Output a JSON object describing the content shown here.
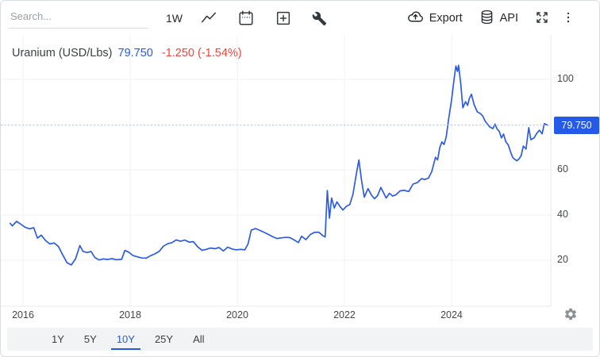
{
  "toolbar": {
    "search_placeholder": "Search...",
    "interval_label": "1W",
    "export_label": "Export",
    "api_label": "API"
  },
  "legend": {
    "title": "Uranium (USD/Lbs)",
    "price": "79.750",
    "change": "-1.250 (-1.54%)"
  },
  "price_badge": {
    "value": "79.750"
  },
  "range_selector": {
    "items": [
      "1Y",
      "5Y",
      "10Y",
      "25Y",
      "All"
    ],
    "active": "10Y"
  },
  "colors": {
    "accent_blue": "#2559e8",
    "line_blue": "#2c5be8",
    "negative_red": "#f0453c",
    "badge_text": "#ffffff",
    "grid": "#eef1f5",
    "axis_border": "#e4e8ec",
    "dashed_price_line": "#a3b7f2",
    "axis_text": "#43474d",
    "range_bar_bg": "#f1f3f4"
  },
  "chart_data": {
    "type": "line",
    "title": "Uranium (USD/Lbs)",
    "unit": "USD/Lbs",
    "current_price": 79.75,
    "xlim": [
      2015.585,
      2025.852
    ],
    "ylim": [
      -0.35,
      119.65
    ],
    "x_ticks": [
      {
        "t": 2016,
        "label": "2016"
      },
      {
        "t": 2018,
        "label": "2018"
      },
      {
        "t": 2020,
        "label": "2020"
      },
      {
        "t": 2022,
        "label": "2022"
      },
      {
        "t": 2024,
        "label": "2024"
      }
    ],
    "y_ticks": [
      {
        "v": 100,
        "label": "100"
      },
      {
        "v": 60,
        "label": "60"
      },
      {
        "v": 40,
        "label": "40"
      },
      {
        "v": 20,
        "label": "20"
      }
    ],
    "series": [
      {
        "name": "Uranium",
        "color": "#2c5be8",
        "points": [
          [
            2015.76,
            36.3
          ],
          [
            2015.8,
            35.2
          ],
          [
            2015.88,
            37.2
          ],
          [
            2015.96,
            35.9
          ],
          [
            2016.04,
            34.6
          ],
          [
            2016.12,
            33.9
          ],
          [
            2016.2,
            34.4
          ],
          [
            2016.27,
            29.8
          ],
          [
            2016.34,
            31.1
          ],
          [
            2016.42,
            28.7
          ],
          [
            2016.5,
            27.2
          ],
          [
            2016.58,
            27.6
          ],
          [
            2016.66,
            26.1
          ],
          [
            2016.74,
            22.4
          ],
          [
            2016.82,
            18.9
          ],
          [
            2016.9,
            17.9
          ],
          [
            2016.98,
            20.6
          ],
          [
            2017.06,
            26.5
          ],
          [
            2017.12,
            23.9
          ],
          [
            2017.2,
            23.4
          ],
          [
            2017.27,
            23.9
          ],
          [
            2017.34,
            21.2
          ],
          [
            2017.42,
            20.1
          ],
          [
            2017.5,
            20.6
          ],
          [
            2017.58,
            20.3
          ],
          [
            2017.66,
            20.7
          ],
          [
            2017.74,
            20.2
          ],
          [
            2017.84,
            20.4
          ],
          [
            2017.9,
            24.3
          ],
          [
            2017.97,
            23.6
          ],
          [
            2018.05,
            22.1
          ],
          [
            2018.13,
            21.5
          ],
          [
            2018.22,
            21.0
          ],
          [
            2018.3,
            20.9
          ],
          [
            2018.38,
            22.0
          ],
          [
            2018.46,
            22.8
          ],
          [
            2018.54,
            23.9
          ],
          [
            2018.62,
            26.2
          ],
          [
            2018.7,
            27.3
          ],
          [
            2018.78,
            27.8
          ],
          [
            2018.86,
            29.0
          ],
          [
            2018.94,
            28.4
          ],
          [
            2019.02,
            28.9
          ],
          [
            2019.1,
            28.0
          ],
          [
            2019.18,
            28.2
          ],
          [
            2019.26,
            25.9
          ],
          [
            2019.34,
            24.4
          ],
          [
            2019.42,
            24.8
          ],
          [
            2019.5,
            25.4
          ],
          [
            2019.58,
            25.1
          ],
          [
            2019.66,
            25.6
          ],
          [
            2019.74,
            24.1
          ],
          [
            2019.82,
            25.8
          ],
          [
            2019.9,
            25.0
          ],
          [
            2019.98,
            24.6
          ],
          [
            2020.06,
            24.8
          ],
          [
            2020.14,
            24.6
          ],
          [
            2020.2,
            27.2
          ],
          [
            2020.26,
            33.3
          ],
          [
            2020.34,
            34.0
          ],
          [
            2020.42,
            33.2
          ],
          [
            2020.5,
            32.3
          ],
          [
            2020.58,
            31.4
          ],
          [
            2020.66,
            30.4
          ],
          [
            2020.74,
            29.6
          ],
          [
            2020.82,
            29.9
          ],
          [
            2020.9,
            30.1
          ],
          [
            2020.98,
            30.0
          ],
          [
            2021.06,
            29.0
          ],
          [
            2021.14,
            27.8
          ],
          [
            2021.2,
            30.6
          ],
          [
            2021.28,
            29.1
          ],
          [
            2021.36,
            31.3
          ],
          [
            2021.44,
            32.3
          ],
          [
            2021.52,
            32.4
          ],
          [
            2021.6,
            30.8
          ],
          [
            2021.64,
            30.3
          ],
          [
            2021.68,
            50.8
          ],
          [
            2021.72,
            38.6
          ],
          [
            2021.76,
            47.5
          ],
          [
            2021.81,
            43.1
          ],
          [
            2021.86,
            45.8
          ],
          [
            2021.91,
            44.0
          ],
          [
            2021.97,
            42.2
          ],
          [
            2022.04,
            43.9
          ],
          [
            2022.1,
            44.6
          ],
          [
            2022.16,
            49.3
          ],
          [
            2022.22,
            57.8
          ],
          [
            2022.27,
            64.3
          ],
          [
            2022.32,
            55.2
          ],
          [
            2022.37,
            47.9
          ],
          [
            2022.44,
            51.7
          ],
          [
            2022.5,
            49.0
          ],
          [
            2022.56,
            47.2
          ],
          [
            2022.62,
            48.6
          ],
          [
            2022.68,
            52.2
          ],
          [
            2022.73,
            49.8
          ],
          [
            2022.78,
            47.5
          ],
          [
            2022.84,
            49.6
          ],
          [
            2022.9,
            48.4
          ],
          [
            2022.96,
            48.9
          ],
          [
            2023.04,
            50.7
          ],
          [
            2023.12,
            50.9
          ],
          [
            2023.2,
            50.4
          ],
          [
            2023.28,
            53.7
          ],
          [
            2023.36,
            54.3
          ],
          [
            2023.44,
            56.1
          ],
          [
            2023.5,
            55.7
          ],
          [
            2023.57,
            56.4
          ],
          [
            2023.63,
            59.2
          ],
          [
            2023.7,
            65.5
          ],
          [
            2023.74,
            64.4
          ],
          [
            2023.78,
            69.8
          ],
          [
            2023.82,
            72.3
          ],
          [
            2023.86,
            71.2
          ],
          [
            2023.9,
            74.5
          ],
          [
            2023.95,
            83.2
          ],
          [
            2024.0,
            90.9
          ],
          [
            2024.05,
            100.8
          ],
          [
            2024.08,
            105.9
          ],
          [
            2024.11,
            103.5
          ],
          [
            2024.13,
            106.2
          ],
          [
            2024.17,
            98.2
          ],
          [
            2024.21,
            87.4
          ],
          [
            2024.26,
            90.1
          ],
          [
            2024.3,
            88.5
          ],
          [
            2024.33,
            91.5
          ],
          [
            2024.37,
            93.4
          ],
          [
            2024.42,
            88.9
          ],
          [
            2024.48,
            85.6
          ],
          [
            2024.54,
            84.8
          ],
          [
            2024.58,
            83.9
          ],
          [
            2024.63,
            81.4
          ],
          [
            2024.67,
            80.2
          ],
          [
            2024.71,
            79.0
          ],
          [
            2024.77,
            78.2
          ],
          [
            2024.81,
            80.2
          ],
          [
            2024.85,
            78.0
          ],
          [
            2024.89,
            77.0
          ],
          [
            2024.93,
            74.1
          ],
          [
            2024.97,
            75.8
          ],
          [
            2025.01,
            72.5
          ],
          [
            2025.06,
            70.9
          ],
          [
            2025.1,
            68.0
          ],
          [
            2025.14,
            65.5
          ],
          [
            2025.18,
            64.6
          ],
          [
            2025.22,
            64.0
          ],
          [
            2025.26,
            64.8
          ],
          [
            2025.3,
            66.3
          ],
          [
            2025.34,
            70.5
          ],
          [
            2025.39,
            69.2
          ],
          [
            2025.44,
            78.6
          ],
          [
            2025.48,
            73.3
          ],
          [
            2025.54,
            74.1
          ],
          [
            2025.59,
            76.1
          ],
          [
            2025.64,
            77.5
          ],
          [
            2025.69,
            75.9
          ],
          [
            2025.73,
            80.4
          ],
          [
            2025.79,
            79.75
          ]
        ]
      }
    ]
  }
}
